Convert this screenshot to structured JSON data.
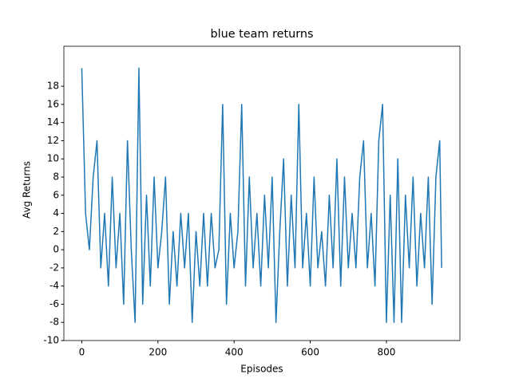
{
  "chart_data": {
    "type": "line",
    "title": "blue team returns",
    "x_label": "Episodes",
    "y_label": "Avg Returns",
    "x": [
      0,
      10,
      20,
      30,
      40,
      50,
      60,
      70,
      80,
      90,
      100,
      110,
      120,
      130,
      140,
      150,
      160,
      170,
      180,
      190,
      200,
      210,
      220,
      230,
      240,
      250,
      260,
      270,
      280,
      290,
      300,
      310,
      320,
      330,
      340,
      350,
      360,
      370,
      380,
      390,
      400,
      410,
      420,
      430,
      440,
      450,
      460,
      470,
      480,
      490,
      500,
      510,
      520,
      530,
      540,
      550,
      560,
      570,
      580,
      590,
      600,
      610,
      620,
      630,
      640,
      650,
      660,
      670,
      680,
      690,
      700,
      710,
      720,
      730,
      740,
      750,
      760,
      770,
      780,
      790,
      800,
      810,
      820,
      830,
      840,
      850,
      860,
      870,
      880,
      890,
      900,
      910,
      920,
      930,
      940,
      945
    ],
    "values": [
      20,
      4,
      0,
      8,
      12,
      -2,
      4,
      -4,
      8,
      -2,
      4,
      -6,
      12,
      0,
      -8,
      20,
      -6,
      6,
      -4,
      8,
      -2,
      2,
      8,
      -6,
      2,
      -4,
      4,
      -2,
      4,
      -8,
      2,
      -4,
      4,
      -4,
      4,
      -2,
      0,
      16,
      -6,
      4,
      -2,
      2,
      16,
      -4,
      8,
      -2,
      4,
      -4,
      6,
      -2,
      8,
      -8,
      2,
      10,
      -4,
      6,
      -2,
      16,
      -2,
      4,
      -4,
      8,
      -2,
      2,
      -4,
      6,
      -2,
      10,
      -4,
      8,
      -2,
      4,
      -2,
      8,
      12,
      -2,
      4,
      -4,
      12,
      16,
      -8,
      6,
      -8,
      10,
      -8,
      6,
      -2,
      8,
      -4,
      4,
      -2,
      8,
      -6,
      8,
      12,
      -2
    ],
    "color": "#1f77b4",
    "xlim": [
      -47,
      993
    ],
    "xticks": [
      0,
      200,
      400,
      600,
      800
    ],
    "ylim": [
      -10,
      22.4
    ],
    "yticks": [
      -10,
      -8,
      -6,
      -4,
      -2,
      0,
      2,
      4,
      6,
      8,
      10,
      12,
      14,
      16,
      18
    ]
  }
}
